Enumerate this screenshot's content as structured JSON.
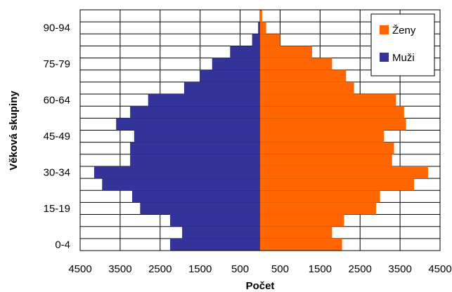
{
  "chart_data": {
    "type": "bar",
    "orientation": "horizontal-population-pyramid",
    "xlabel": "Počet",
    "ylabel": "Věková skupiny",
    "xlim": [
      -4500,
      4500
    ],
    "x_tick_values": [
      -4500,
      -3500,
      -2500,
      -1500,
      -500,
      500,
      1500,
      2500,
      3500,
      4500
    ],
    "x_tick_labels": [
      "4500",
      "3500",
      "2500",
      "1500",
      "500",
      "500",
      "1500",
      "2500",
      "3500",
      "4500"
    ],
    "categories": [
      "0-4",
      "5-9",
      "10-14",
      "15-19",
      "20-24",
      "25-29",
      "30-34",
      "35-39",
      "40-44",
      "45-49",
      "50-54",
      "55-59",
      "60-64",
      "65-69",
      "70-74",
      "75-79",
      "80-84",
      "85-89",
      "90-94",
      "95+"
    ],
    "category_labels_shown": [
      "0-4",
      "15-19",
      "30-34",
      "45-49",
      "60-64",
      "75-79",
      "90-94"
    ],
    "grid": true,
    "legend_position": "top-right",
    "series": [
      {
        "name": "Ženy",
        "color": "#ff6600",
        "values": [
          2050,
          1800,
          2100,
          2900,
          3000,
          3850,
          4200,
          3300,
          3350,
          3100,
          3650,
          3600,
          3400,
          2350,
          2150,
          1800,
          1300,
          500,
          150,
          50
        ]
      },
      {
        "name": "Muži",
        "color": "#333399",
        "values": [
          2250,
          1950,
          2250,
          3000,
          3200,
          3950,
          4150,
          3250,
          3250,
          3150,
          3600,
          3250,
          2800,
          1900,
          1500,
          1200,
          750,
          200,
          50,
          10
        ]
      }
    ]
  }
}
